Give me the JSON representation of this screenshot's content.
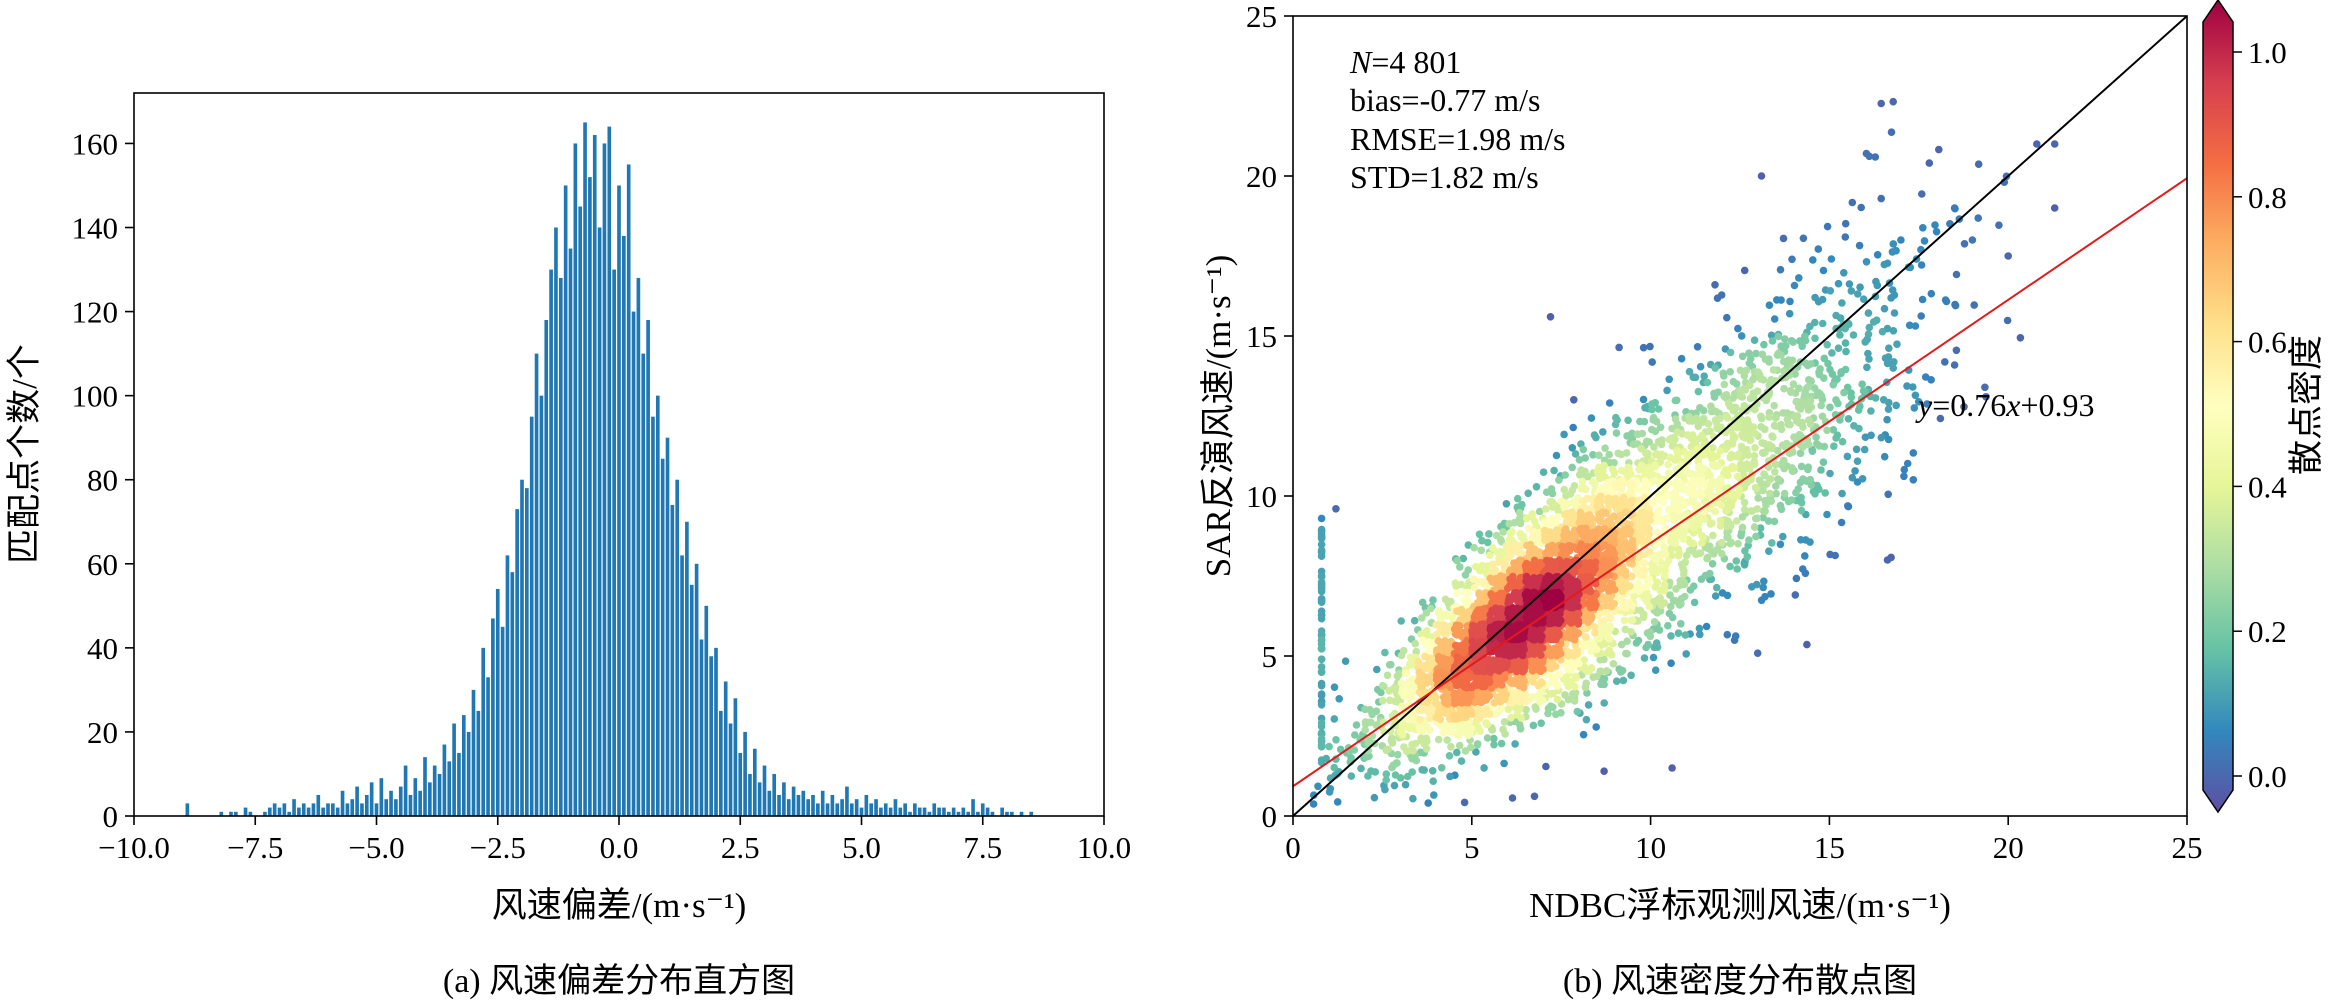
{
  "chart_data": [
    {
      "type": "bar",
      "subtitle": "(a) 风速偏差分布直方图",
      "xlabel": "风速偏差/(m·s⁻¹)",
      "ylabel": "匹配点个数/个",
      "xlim": [
        -10,
        10
      ],
      "ylim": [
        0,
        172
      ],
      "xticks": [
        "−10.0",
        "−7.5",
        "−5.0",
        "−2.5",
        "0.0",
        "2.5",
        "5.0",
        "7.5",
        "10.0"
      ],
      "yticks": [
        "0",
        "20",
        "40",
        "60",
        "80",
        "100",
        "120",
        "140",
        "160"
      ],
      "color": "#1f77b4",
      "bin_width": 0.1,
      "bins": [
        [
          -8.9,
          3
        ],
        [
          -8.2,
          1
        ],
        [
          -8.0,
          1
        ],
        [
          -7.9,
          1
        ],
        [
          -7.7,
          2
        ],
        [
          -7.6,
          1
        ],
        [
          -7.3,
          1
        ],
        [
          -7.2,
          2
        ],
        [
          -7.1,
          3
        ],
        [
          -7.0,
          2
        ],
        [
          -6.9,
          3
        ],
        [
          -6.8,
          1
        ],
        [
          -6.7,
          4
        ],
        [
          -6.6,
          2
        ],
        [
          -6.5,
          3
        ],
        [
          -6.4,
          2
        ],
        [
          -6.3,
          3
        ],
        [
          -6.2,
          5
        ],
        [
          -6.1,
          2
        ],
        [
          -6.0,
          3
        ],
        [
          -5.9,
          3
        ],
        [
          -5.8,
          2
        ],
        [
          -5.7,
          6
        ],
        [
          -5.6,
          3
        ],
        [
          -5.5,
          4
        ],
        [
          -5.4,
          7
        ],
        [
          -5.3,
          3
        ],
        [
          -5.2,
          5
        ],
        [
          -5.1,
          8
        ],
        [
          -5.0,
          3
        ],
        [
          -4.9,
          9
        ],
        [
          -4.8,
          4
        ],
        [
          -4.7,
          6
        ],
        [
          -4.6,
          4
        ],
        [
          -4.5,
          7
        ],
        [
          -4.4,
          12
        ],
        [
          -4.3,
          5
        ],
        [
          -4.2,
          9
        ],
        [
          -4.1,
          6
        ],
        [
          -4.0,
          14
        ],
        [
          -3.9,
          8
        ],
        [
          -3.8,
          12
        ],
        [
          -3.7,
          10
        ],
        [
          -3.6,
          17
        ],
        [
          -3.5,
          13
        ],
        [
          -3.4,
          22
        ],
        [
          -3.3,
          15
        ],
        [
          -3.2,
          24
        ],
        [
          -3.1,
          20
        ],
        [
          -3.0,
          30
        ],
        [
          -2.9,
          25
        ],
        [
          -2.8,
          40
        ],
        [
          -2.7,
          33
        ],
        [
          -2.6,
          47
        ],
        [
          -2.5,
          54
        ],
        [
          -2.4,
          45
        ],
        [
          -2.3,
          62
        ],
        [
          -2.2,
          58
        ],
        [
          -2.1,
          73
        ],
        [
          -2.0,
          80
        ],
        [
          -1.9,
          78
        ],
        [
          -1.8,
          95
        ],
        [
          -1.7,
          110
        ],
        [
          -1.6,
          100
        ],
        [
          -1.5,
          118
        ],
        [
          -1.4,
          130
        ],
        [
          -1.3,
          140
        ],
        [
          -1.2,
          128
        ],
        [
          -1.1,
          150
        ],
        [
          -1.0,
          135
        ],
        [
          -0.9,
          160
        ],
        [
          -0.8,
          145
        ],
        [
          -0.7,
          165
        ],
        [
          -0.6,
          152
        ],
        [
          -0.5,
          162
        ],
        [
          -0.4,
          140
        ],
        [
          -0.3,
          160
        ],
        [
          -0.2,
          164
        ],
        [
          -0.1,
          130
        ],
        [
          0.0,
          150
        ],
        [
          0.1,
          138
        ],
        [
          0.2,
          155
        ],
        [
          0.3,
          120
        ],
        [
          0.4,
          128
        ],
        [
          0.5,
          110
        ],
        [
          0.6,
          118
        ],
        [
          0.7,
          95
        ],
        [
          0.8,
          100
        ],
        [
          0.9,
          85
        ],
        [
          1.0,
          90
        ],
        [
          1.1,
          74
        ],
        [
          1.2,
          80
        ],
        [
          1.3,
          62
        ],
        [
          1.4,
          70
        ],
        [
          1.5,
          55
        ],
        [
          1.6,
          60
        ],
        [
          1.7,
          42
        ],
        [
          1.8,
          50
        ],
        [
          1.9,
          38
        ],
        [
          2.0,
          40
        ],
        [
          2.1,
          25
        ],
        [
          2.2,
          32
        ],
        [
          2.3,
          22
        ],
        [
          2.4,
          28
        ],
        [
          2.5,
          15
        ],
        [
          2.6,
          20
        ],
        [
          2.7,
          10
        ],
        [
          2.8,
          16
        ],
        [
          2.9,
          8
        ],
        [
          3.0,
          12
        ],
        [
          3.1,
          6
        ],
        [
          3.2,
          10
        ],
        [
          3.3,
          5
        ],
        [
          3.4,
          8
        ],
        [
          3.5,
          4
        ],
        [
          3.6,
          7
        ],
        [
          3.7,
          5
        ],
        [
          3.8,
          6
        ],
        [
          3.9,
          4
        ],
        [
          4.0,
          5
        ],
        [
          4.1,
          3
        ],
        [
          4.2,
          6
        ],
        [
          4.3,
          3
        ],
        [
          4.4,
          5
        ],
        [
          4.5,
          3
        ],
        [
          4.6,
          4
        ],
        [
          4.7,
          7
        ],
        [
          4.8,
          3
        ],
        [
          4.9,
          4
        ],
        [
          5.0,
          2
        ],
        [
          5.1,
          5
        ],
        [
          5.2,
          3
        ],
        [
          5.3,
          4
        ],
        [
          5.4,
          2
        ],
        [
          5.5,
          3
        ],
        [
          5.6,
          2
        ],
        [
          5.7,
          4
        ],
        [
          5.8,
          2
        ],
        [
          5.9,
          3
        ],
        [
          6.0,
          1
        ],
        [
          6.1,
          3
        ],
        [
          6.2,
          2
        ],
        [
          6.3,
          2
        ],
        [
          6.4,
          1
        ],
        [
          6.5,
          3
        ],
        [
          6.6,
          2
        ],
        [
          6.7,
          2
        ],
        [
          6.8,
          1
        ],
        [
          6.9,
          2
        ],
        [
          7.0,
          1
        ],
        [
          7.1,
          2
        ],
        [
          7.2,
          1
        ],
        [
          7.3,
          4
        ],
        [
          7.4,
          1
        ],
        [
          7.5,
          3
        ],
        [
          7.6,
          2
        ],
        [
          7.7,
          1
        ],
        [
          7.9,
          2
        ],
        [
          8.0,
          1
        ],
        [
          8.1,
          1
        ],
        [
          8.3,
          1
        ],
        [
          8.5,
          1
        ]
      ]
    },
    {
      "type": "scatter",
      "subtitle": "(b) 风速密度分布散点图",
      "xlabel": "NDBC浮标观测风速/(m·s⁻¹)",
      "ylabel": "SAR反演风速/(m·s⁻¹)",
      "xlim": [
        0,
        25
      ],
      "ylim": [
        0,
        25
      ],
      "xticks": [
        "0",
        "5",
        "10",
        "15",
        "20",
        "25"
      ],
      "yticks": [
        "0",
        "5",
        "10",
        "15",
        "20",
        "25"
      ],
      "stats": {
        "n_italic": "N",
        "n_rest": "=4 801",
        "bias": "bias=-0.77 m/s",
        "rmse": "RMSE=1.98 m/s",
        "std": "STD=1.82 m/s"
      },
      "fit": {
        "slope": 0.76,
        "intercept": 0.93,
        "color": "#e31a1c",
        "label_y": "y",
        "label_mid": "=0.76",
        "label_x": "x",
        "label_end": "+0.93"
      },
      "identity_line_color": "#000000",
      "colorbar": {
        "label": "散点密度",
        "range": [
          0,
          1
        ],
        "ticks": [
          "0.0",
          "0.2",
          "0.4",
          "0.6",
          "0.8",
          "1.0"
        ],
        "colormap": "Spectral_r",
        "stops": [
          "#5e4fa2",
          "#3288bd",
          "#66c2a5",
          "#abdda4",
          "#e6f598",
          "#ffffbf",
          "#fee08b",
          "#fdae61",
          "#f46d43",
          "#d53e4f",
          "#9e0142"
        ]
      },
      "n_points": 4801,
      "notable_points": [
        [
          0.8,
          9.3
        ],
        [
          1.2,
          9.6
        ],
        [
          7.2,
          15.6
        ],
        [
          13.1,
          20.0
        ],
        [
          11.8,
          16.6
        ],
        [
          20.8,
          21.0
        ],
        [
          21.3,
          21.0
        ],
        [
          21.3,
          19.0
        ],
        [
          20.0,
          17.5
        ],
        [
          18.5,
          19.0
        ],
        [
          17.0,
          18.0
        ],
        [
          8.7,
          1.4
        ],
        [
          10.6,
          1.5
        ],
        [
          16.3,
          16.7
        ],
        [
          19.0,
          18.0
        ]
      ]
    }
  ]
}
